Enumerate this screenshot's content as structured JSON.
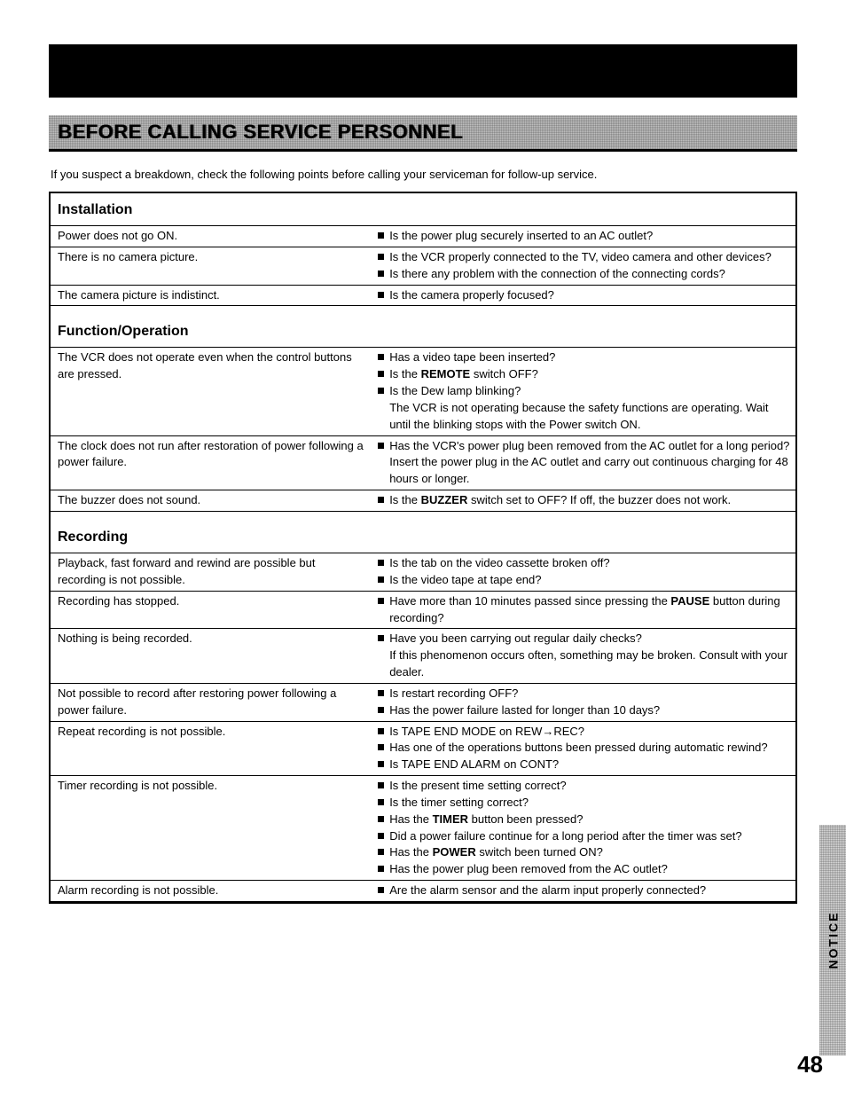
{
  "page_number": "48",
  "side_tab": "NOTICE",
  "title": "BEFORE CALLING SERVICE PERSONNEL",
  "intro": "If you suspect a breakdown, check the following points before calling your serviceman for follow-up service.",
  "sections": [
    {
      "heading": "Installation",
      "rows": [
        {
          "problem": "Power does not go ON.",
          "checks": [
            {
              "bullet": true,
              "text": "Is the power plug securely inserted to an AC outlet?"
            }
          ]
        },
        {
          "problem": "There is no camera picture.",
          "checks": [
            {
              "bullet": true,
              "text": "Is the VCR properly connected to the TV, video camera and other devices?"
            },
            {
              "bullet": true,
              "text": "Is there any problem with the connection of the connecting cords?"
            }
          ]
        },
        {
          "problem": "The camera picture is indistinct.",
          "checks": [
            {
              "bullet": true,
              "text": "Is the camera properly focused?"
            }
          ]
        }
      ]
    },
    {
      "heading": "Function/Operation",
      "rows": [
        {
          "problem": "The VCR does not operate even when the control buttons are pressed.",
          "checks": [
            {
              "bullet": true,
              "text": "Has a video tape been inserted?"
            },
            {
              "bullet": true,
              "text_before": "Is the ",
              "bold": "REMOTE",
              "text_after": " switch OFF?"
            },
            {
              "bullet": true,
              "text": "Is the Dew lamp blinking?"
            },
            {
              "bullet": false,
              "text": "The VCR is not operating because the safety functions are operating. Wait until the blinking stops with the Power switch ON."
            }
          ]
        },
        {
          "problem": "The clock does not run after restoration of power following a power failure.",
          "checks": [
            {
              "bullet": true,
              "text": "Has the VCR's power plug been removed from the AC outlet for a long period? Insert the power plug in the AC outlet and carry out continuous charging for 48 hours or longer."
            }
          ]
        },
        {
          "problem": "The buzzer does not sound.",
          "checks": [
            {
              "bullet": true,
              "text_before": "Is the ",
              "bold": "BUZZER",
              "text_after": " switch set to OFF? If off, the buzzer does not work."
            }
          ]
        }
      ]
    },
    {
      "heading": "Recording",
      "rows": [
        {
          "problem": "Playback, fast forward and rewind are possible but recording is not possible.",
          "checks": [
            {
              "bullet": true,
              "text": "Is the tab on the video cassette broken off?"
            },
            {
              "bullet": true,
              "text": "Is the video tape at tape end?"
            }
          ]
        },
        {
          "problem": "Recording has stopped.",
          "checks": [
            {
              "bullet": true,
              "text_before": "Have more than 10 minutes passed since pressing the ",
              "bold": "PAUSE",
              "text_after": " button during recording?"
            }
          ]
        },
        {
          "problem": "Nothing is being recorded.",
          "checks": [
            {
              "bullet": true,
              "text": "Have you been carrying out regular daily checks?"
            },
            {
              "bullet": false,
              "text": "If this phenomenon occurs often, something may be broken. Consult with your dealer."
            }
          ]
        },
        {
          "problem": "Not possible to record after restoring power following a power failure.",
          "checks": [
            {
              "bullet": true,
              "text": "Is restart recording OFF?"
            },
            {
              "bullet": true,
              "text": "Has the power failure lasted for longer than 10 days?"
            }
          ]
        },
        {
          "problem": "Repeat recording is not possible.",
          "checks": [
            {
              "bullet": true,
              "text": "Is TAPE END MODE on REW→REC?"
            },
            {
              "bullet": true,
              "text": "Has one of the operations buttons been pressed during automatic rewind?"
            },
            {
              "bullet": true,
              "text": "Is TAPE END ALARM on CONT?"
            }
          ]
        },
        {
          "problem": "Timer recording is not possible.",
          "checks": [
            {
              "bullet": true,
              "text": "Is the present time setting correct?"
            },
            {
              "bullet": true,
              "text": "Is the timer setting correct?"
            },
            {
              "bullet": true,
              "text_before": "Has the ",
              "bold": "TIMER",
              "text_after": " button been pressed?"
            },
            {
              "bullet": true,
              "text": "Did a power failure continue for a long period after the timer was set?"
            },
            {
              "bullet": true,
              "text_before": "Has the ",
              "bold": "POWER",
              "text_after": " switch been turned ON?"
            },
            {
              "bullet": true,
              "text": "Has the power plug been removed from the AC outlet?"
            }
          ]
        },
        {
          "problem": "Alarm recording is not possible.",
          "checks": [
            {
              "bullet": true,
              "text": "Are the alarm sensor and the alarm input properly connected?"
            }
          ]
        }
      ]
    }
  ]
}
